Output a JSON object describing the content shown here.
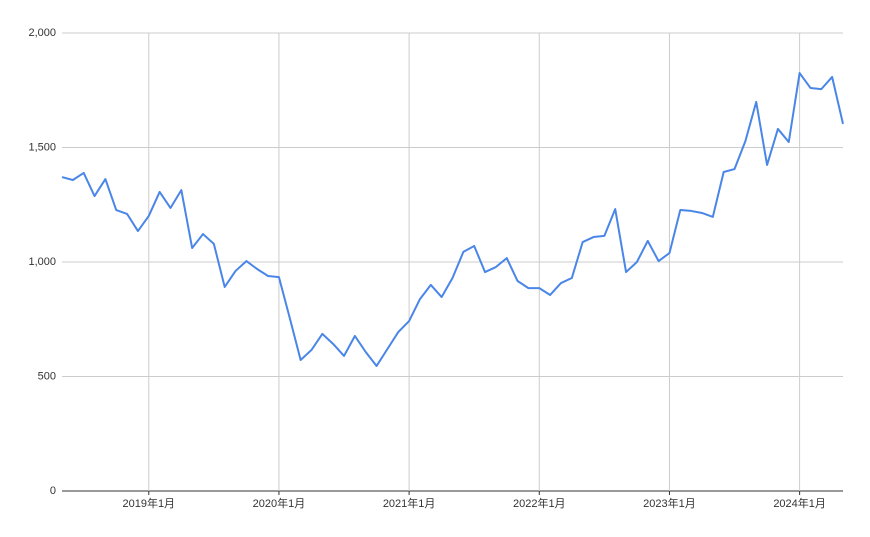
{
  "chart_data": {
    "type": "line",
    "x": [
      "2018-05",
      "2018-06",
      "2018-07",
      "2018-08",
      "2018-09",
      "2018-10",
      "2018-11",
      "2018-12",
      "2019-01",
      "2019-02",
      "2019-03",
      "2019-04",
      "2019-05",
      "2019-06",
      "2019-07",
      "2019-08",
      "2019-09",
      "2019-10",
      "2019-11",
      "2019-12",
      "2020-01",
      "2020-02",
      "2020-03",
      "2020-04",
      "2020-05",
      "2020-06",
      "2020-07",
      "2020-08",
      "2020-09",
      "2020-10",
      "2020-11",
      "2020-12",
      "2021-01",
      "2021-02",
      "2021-03",
      "2021-04",
      "2021-05",
      "2021-06",
      "2021-07",
      "2021-08",
      "2021-09",
      "2021-10",
      "2021-11",
      "2021-12",
      "2022-01",
      "2022-02",
      "2022-03",
      "2022-04",
      "2022-05",
      "2022-06",
      "2022-07",
      "2022-08",
      "2022-09",
      "2022-10",
      "2022-11",
      "2022-12",
      "2023-01",
      "2023-02",
      "2023-03",
      "2023-04",
      "2023-05",
      "2023-06",
      "2023-07",
      "2023-08",
      "2023-09",
      "2023-10",
      "2023-11",
      "2023-12",
      "2024-01",
      "2024-02",
      "2024-03",
      "2024-04",
      "2024-05"
    ],
    "series": [
      {
        "color": "#4a86e8",
        "values": [
          1371,
          1358,
          1389,
          1288,
          1362,
          1227,
          1210,
          1135,
          1201,
          1306,
          1236,
          1314,
          1061,
          1122,
          1079,
          891,
          961,
          1004,
          969,
          939,
          934,
          755,
          572,
          616,
          686,
          642,
          590,
          677,
          607,
          546,
          620,
          694,
          742,
          838,
          900,
          847,
          930,
          1044,
          1070,
          956,
          978,
          1017,
          917,
          886,
          886,
          856,
          908,
          930,
          1087,
          1109,
          1114,
          1231,
          956,
          1000,
          1092,
          1004,
          1039,
          1227,
          1223,
          1214,
          1197,
          1393,
          1406,
          1528,
          1699,
          1424,
          1581,
          1524,
          1825,
          1760,
          1755,
          1808,
          1603
        ]
      }
    ],
    "xlim": [
      "2018-05",
      "2024-05"
    ],
    "xticks": [
      {
        "value": "2019-01",
        "label": "2019年1月"
      },
      {
        "value": "2020-01",
        "label": "2020年1月"
      },
      {
        "value": "2021-01",
        "label": "2021年1月"
      },
      {
        "value": "2022-01",
        "label": "2022年1月"
      },
      {
        "value": "2023-01",
        "label": "2023年1月"
      },
      {
        "value": "2024-01",
        "label": "2024年1月"
      }
    ],
    "ylim": [
      0,
      2000
    ],
    "yticks": [
      0,
      500,
      {
        "value": 1000,
        "label": "1,000"
      },
      {
        "value": 1500,
        "label": "1,500"
      },
      {
        "value": 2000,
        "label": "2,000"
      }
    ],
    "grid": true
  }
}
